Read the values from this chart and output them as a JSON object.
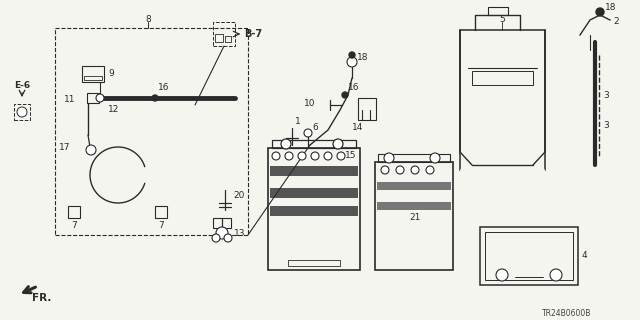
{
  "bg_color": "#f5f5f0",
  "line_color": "#2a2a2a",
  "text_color": "#2a2a2a",
  "diagram_code": "TR24B0600B",
  "figsize": [
    6.4,
    3.2
  ],
  "dpi": 100,
  "lw_main": 1.0,
  "lw_thick": 2.0,
  "fs_label": 6.5,
  "fs_bold": 7.0
}
